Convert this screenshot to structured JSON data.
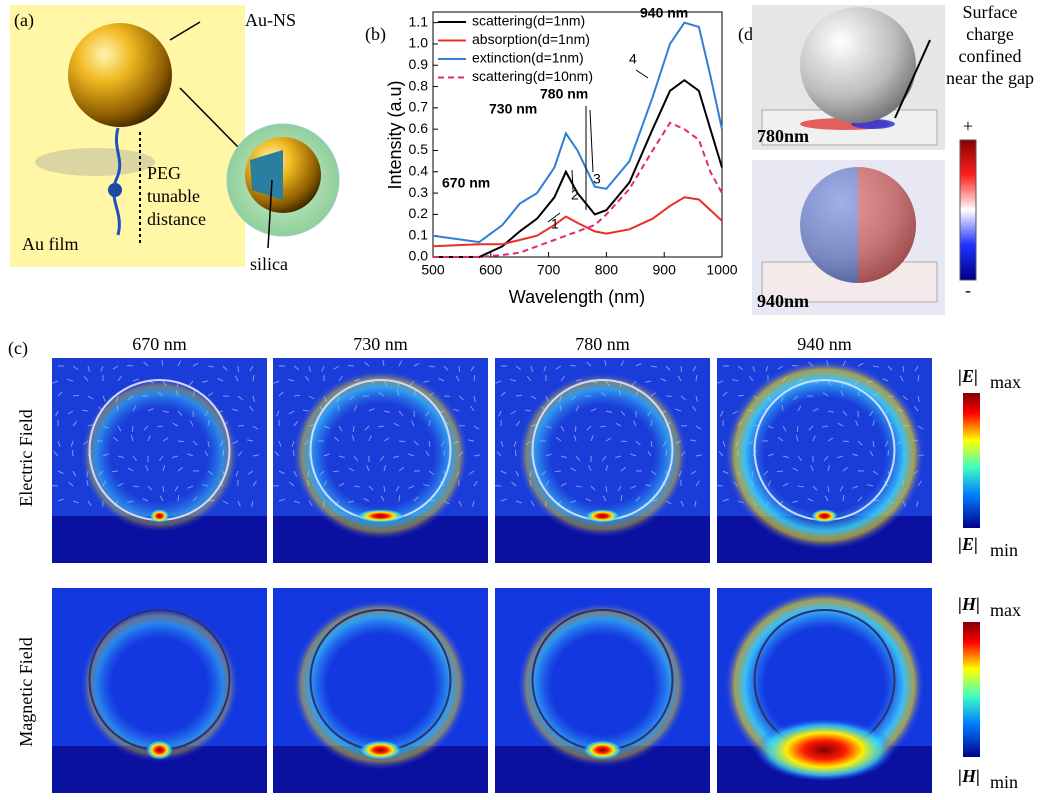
{
  "panel_a": {
    "label": "(a)",
    "sphere": "Au-NS",
    "linker": [
      "PEG",
      "tunable",
      "distance"
    ],
    "film": "Au film",
    "shell": "silica"
  },
  "chart_data": {
    "type": "line",
    "label": "(b)",
    "x_label": "Wavelength (nm)",
    "y_label": "Intensity (a.u)",
    "x": [
      500,
      580,
      620,
      650,
      680,
      710,
      730,
      750,
      780,
      800,
      840,
      880,
      910,
      935,
      960,
      980,
      1000
    ],
    "series": [
      {
        "name": "scattering(d=1nm)",
        "color": "#000000",
        "style": "solid",
        "values": [
          0.0,
          0.0,
          0.05,
          0.12,
          0.18,
          0.28,
          0.4,
          0.3,
          0.2,
          0.22,
          0.35,
          0.6,
          0.78,
          0.83,
          0.78,
          0.6,
          0.42
        ]
      },
      {
        "name": "absorption(d=1nm)",
        "color": "#e8302a",
        "style": "solid",
        "values": [
          0.05,
          0.06,
          0.06,
          0.08,
          0.1,
          0.15,
          0.19,
          0.16,
          0.12,
          0.11,
          0.13,
          0.18,
          0.24,
          0.28,
          0.27,
          0.22,
          0.17
        ]
      },
      {
        "name": "extinction(d=1nm)",
        "color": "#2f7fd8",
        "style": "solid",
        "values": [
          0.1,
          0.07,
          0.15,
          0.25,
          0.3,
          0.42,
          0.58,
          0.5,
          0.33,
          0.32,
          0.45,
          0.75,
          1.0,
          1.1,
          1.08,
          0.85,
          0.6
        ]
      },
      {
        "name": "scattering(d=10nm)",
        "color": "#e0287a",
        "style": "dashed",
        "values": [
          0.0,
          0.0,
          0.01,
          0.02,
          0.05,
          0.08,
          0.1,
          0.12,
          0.15,
          0.2,
          0.32,
          0.5,
          0.63,
          0.6,
          0.55,
          0.4,
          0.3
        ]
      }
    ],
    "annotations": [
      "670 nm",
      "730 nm",
      "780 nm",
      "940 nm",
      "1",
      "2",
      "3",
      "4"
    ],
    "xlim": [
      500,
      1000
    ],
    "xticks": [
      500,
      600,
      700,
      800,
      900,
      1000
    ],
    "ylim": [
      0,
      1.15
    ],
    "yticks": [
      {
        "value": 0,
        "label": "0.0"
      },
      0.1,
      0.2,
      0.3,
      0.4,
      0.5,
      0.6,
      0.7,
      0.8,
      0.9,
      {
        "value": 1,
        "label": "1.0"
      },
      1.1
    ],
    "legend": "upper left",
    "grid": false
  },
  "panel_c": {
    "label": "(c)",
    "columns": [
      "670 nm",
      "730 nm",
      "780 nm",
      "940 nm"
    ],
    "rows": [
      "Electric Field",
      "Magnetic Field"
    ],
    "e_max": [
      "|E|",
      "max"
    ],
    "e_min": [
      "|E|",
      "min"
    ],
    "h_max": [
      "|H|",
      "max"
    ],
    "h_min": [
      "|H|",
      "min"
    ]
  },
  "panel_d": {
    "label": "(d)",
    "note": [
      "Surface",
      "charge",
      "confined",
      "near the gap"
    ],
    "top": "780nm",
    "bottom": "940nm",
    "plus": "+",
    "minus": "-"
  }
}
